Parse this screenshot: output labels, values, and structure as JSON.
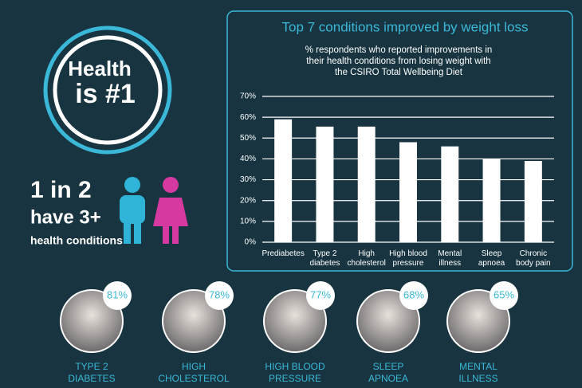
{
  "chart_data": {
    "type": "bar",
    "title": "Top 7 conditions improved by weight loss",
    "subtitle": "% respondents who reported improvements in\ntheir health conditions from losing weight with\nthe CSIRO Total Wellbeing Diet",
    "categories": [
      "Prediabetes",
      "Type 2\ndiabetes",
      "High\ncholesterol",
      "High blood\npressure",
      "Mental\nillness",
      "Sleep\napnoea",
      "Chronic\nbody pain"
    ],
    "values": [
      59,
      55.5,
      55.5,
      48,
      46,
      40,
      39
    ],
    "color": "#ffffff",
    "ylim": [
      0,
      70
    ],
    "yticks": [
      {
        "value": 0,
        "label": "0%"
      },
      {
        "value": 10,
        "label": "10%"
      },
      {
        "value": 20,
        "label": "20%"
      },
      {
        "value": 30,
        "label": "30%"
      },
      {
        "value": 40,
        "label": "40%"
      },
      {
        "value": 50,
        "label": "50%"
      },
      {
        "value": 60,
        "label": "60%"
      },
      {
        "value": 70,
        "label": "70%"
      }
    ],
    "grid": true
  },
  "badge": {
    "line1": "Health",
    "line2": "is #1"
  },
  "stat": {
    "line1": "1 in 2",
    "line2": "have 3+",
    "line3": "health conditions"
  },
  "conditions": [
    {
      "percent": "81%",
      "label": "TYPE 2\nDIABETES"
    },
    {
      "percent": "78%",
      "label": "HIGH\nCHOLESTEROL"
    },
    {
      "percent": "77%",
      "label": "HIGH BLOOD\nPRESSURE"
    },
    {
      "percent": "68%",
      "label": "SLEEP\nAPNOEA"
    },
    {
      "percent": "65%",
      "label": "MENTAL\nILLNESS"
    }
  ]
}
